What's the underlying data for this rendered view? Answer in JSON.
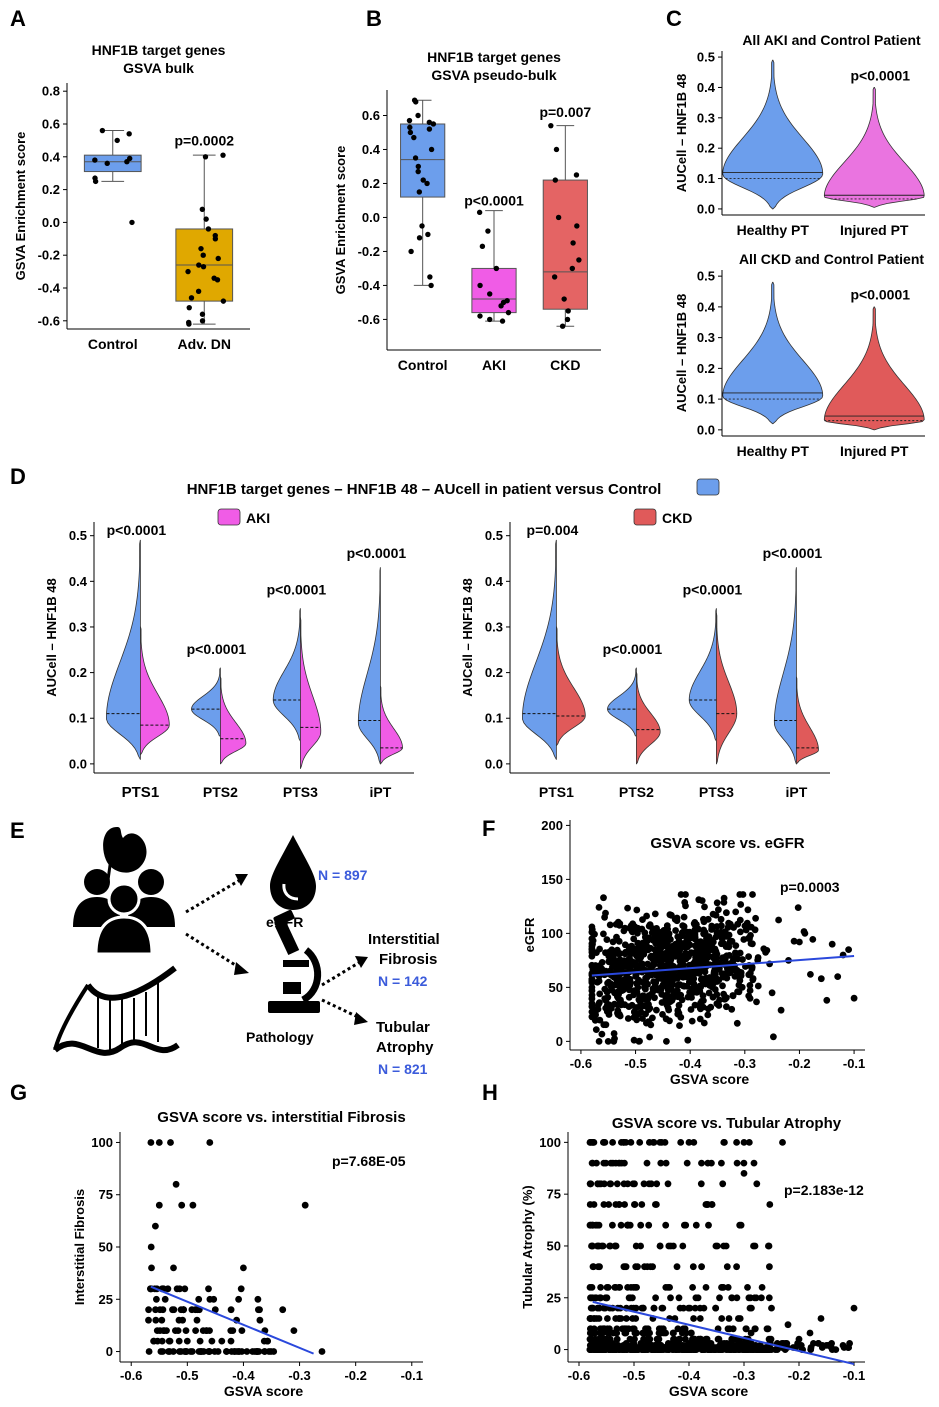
{
  "panel_labels": {
    "A": "A",
    "B": "B",
    "C": "C",
    "D": "D",
    "E": "E",
    "F": "F",
    "G": "G",
    "H": "H"
  },
  "colors": {
    "control": "#6c9eec",
    "adv_dn": "#e0a800",
    "aki": "#f05ce6",
    "ckd": "#e46464",
    "injured_aki": "#ea74e0",
    "injured_ckd": "#e05a5a",
    "fit_line": "#2a48dc",
    "n_text": "#3b5bdb"
  },
  "panel_E": {
    "egfr_label": "eGFR",
    "egfr_n": "N = 897",
    "pathology_label": "Pathology",
    "fibrosis_line1": "Interstitial",
    "fibrosis_line2": "Fibrosis",
    "fibrosis_n": "N = 142",
    "atrophy_line1": "Tubular",
    "atrophy_line2": "Atrophy",
    "atrophy_n": "N = 821",
    "icons": [
      "kidney-icon",
      "people-icon",
      "dna-icon",
      "blood-drop-icon",
      "microscope-icon",
      "arrow-icon"
    ]
  },
  "chart_data": [
    {
      "id": "A",
      "type": "box",
      "title_line1": "HNF1B target genes",
      "title_line2": "GSVA bulk",
      "ylabel": "GSVA Enrichment score",
      "ylim": [
        -0.65,
        0.85
      ],
      "yticks": [
        -0.6,
        -0.4,
        -0.2,
        0.0,
        0.2,
        0.4,
        0.6,
        0.8
      ],
      "ytick_labels": [
        "-0.6",
        "-0.4",
        "-0.2",
        "0.0",
        "0.2",
        "0.4",
        "0.6",
        "0.8"
      ],
      "categories": [
        "Control",
        "Adv. DN"
      ],
      "boxes": [
        {
          "q1": 0.31,
          "median": 0.37,
          "q3": 0.41,
          "whisker_low": 0.25,
          "whisker_high": 0.56,
          "color": "#6c9eec",
          "points": [
            0.56,
            0.54,
            0.5,
            0.39,
            0.38,
            0.37,
            0.36,
            0.27,
            0.25,
            0.0
          ]
        },
        {
          "q1": -0.48,
          "median": -0.26,
          "q3": -0.04,
          "whisker_low": -0.62,
          "whisker_high": 0.41,
          "color": "#e0a800",
          "points": [
            0.41,
            0.4,
            0.08,
            0.02,
            -0.04,
            -0.08,
            -0.1,
            -0.16,
            -0.2,
            -0.22,
            -0.26,
            -0.27,
            -0.3,
            -0.34,
            -0.35,
            -0.42,
            -0.46,
            -0.48,
            -0.52,
            -0.56,
            -0.6,
            -0.61,
            -0.62
          ]
        }
      ],
      "annotations": [
        {
          "text": "p=0.0002",
          "category": 1,
          "y": 0.5
        }
      ]
    },
    {
      "id": "B",
      "type": "box",
      "title_line1": "HNF1B target genes",
      "title_line2": "GSVA pseudo-bulk",
      "ylabel": "GSVA Enrichment score",
      "ylim": [
        -0.78,
        0.75
      ],
      "yticks": [
        -0.6,
        -0.4,
        -0.2,
        0.0,
        0.2,
        0.4,
        0.6
      ],
      "ytick_labels": [
        "-0.6",
        "-0.4",
        "-0.2",
        "0.0",
        "0.2",
        "0.4",
        "0.6"
      ],
      "categories": [
        "Control",
        "AKI",
        "CKD"
      ],
      "boxes": [
        {
          "q1": 0.12,
          "median": 0.34,
          "q3": 0.55,
          "whisker_low": -0.4,
          "whisker_high": 0.69,
          "color": "#6c9eec",
          "points": [
            0.69,
            0.68,
            0.6,
            0.57,
            0.56,
            0.55,
            0.53,
            0.52,
            0.5,
            0.47,
            0.4,
            0.35,
            0.3,
            0.27,
            0.22,
            0.2,
            0.15,
            -0.05,
            -0.1,
            -0.12,
            -0.2,
            -0.35,
            -0.4
          ]
        },
        {
          "q1": -0.56,
          "median": -0.48,
          "q3": -0.3,
          "whisker_low": -0.61,
          "whisker_high": 0.04,
          "color": "#f05ce6",
          "points": [
            0.03,
            -0.08,
            -0.17,
            -0.3,
            -0.4,
            -0.45,
            -0.49,
            -0.5,
            -0.52,
            -0.56,
            -0.58,
            -0.6,
            -0.61
          ]
        },
        {
          "q1": -0.54,
          "median": -0.32,
          "q3": 0.22,
          "whisker_low": -0.64,
          "whisker_high": 0.54,
          "color": "#e46464",
          "points": [
            0.54,
            0.4,
            0.25,
            0.22,
            0.0,
            -0.05,
            -0.15,
            -0.25,
            -0.3,
            -0.35,
            -0.48,
            -0.55,
            -0.6,
            -0.64
          ]
        }
      ],
      "annotations": [
        {
          "text": "p<0.0001",
          "category": 1,
          "y": 0.1
        },
        {
          "text": "p=0.007",
          "category": 2,
          "y": 0.62
        }
      ]
    },
    {
      "id": "C1",
      "type": "violin",
      "title": "All AKI and Control Patient",
      "ylabel": "AUCell – HNF1B 48",
      "ylim": [
        -0.02,
        0.52
      ],
      "yticks": [
        0.0,
        0.1,
        0.2,
        0.3,
        0.4,
        0.5
      ],
      "ytick_labels": [
        "0.0",
        "0.1",
        "0.2",
        "0.3",
        "0.4",
        "0.5"
      ],
      "categories": [
        "Healthy PT",
        "Injured PT"
      ],
      "violins": [
        {
          "min": 0.0,
          "max": 0.49,
          "median": 0.12,
          "q1": 0.1,
          "mode": 0.115,
          "color": "#6c9eec"
        },
        {
          "min": 0.005,
          "max": 0.4,
          "median": 0.045,
          "q1": 0.033,
          "mode": 0.04,
          "color": "#ea74e0"
        }
      ],
      "annotations": [
        {
          "text": "p<0.0001",
          "category": 1,
          "y": 0.44
        }
      ]
    },
    {
      "id": "C2",
      "type": "violin",
      "title": "All CKD and Control Patient",
      "ylabel": "AUCell – HNF1B 48",
      "ylim": [
        -0.02,
        0.52
      ],
      "yticks": [
        0.0,
        0.1,
        0.2,
        0.3,
        0.4,
        0.5
      ],
      "ytick_labels": [
        "0.0",
        "0.1",
        "0.2",
        "0.3",
        "0.4",
        "0.5"
      ],
      "categories": [
        "Healthy PT",
        "Injured PT"
      ],
      "violins": [
        {
          "min": 0.02,
          "max": 0.48,
          "median": 0.12,
          "q1": 0.1,
          "mode": 0.11,
          "color": "#6c9eec"
        },
        {
          "min": 0.0,
          "max": 0.4,
          "median": 0.045,
          "q1": 0.03,
          "mode": 0.03,
          "color": "#e05a5a"
        }
      ],
      "annotations": [
        {
          "text": "p<0.0001",
          "category": 1,
          "y": 0.44
        }
      ]
    },
    {
      "id": "D",
      "type": "split-violin",
      "title": "HNF1B target genes – HNF1B 48 – AUcell in patient versus Control",
      "legend_control": "",
      "groups": [
        {
          "legend": "AKI",
          "color": "#f05ce6",
          "ylabel": "AUCell – HNF1B 48",
          "ylim": [
            -0.02,
            0.53
          ],
          "yticks": [
            0.0,
            0.1,
            0.2,
            0.3,
            0.4,
            0.5
          ],
          "ytick_labels": [
            "0.0",
            "0.1",
            "0.2",
            "0.3",
            "0.4",
            "0.5"
          ],
          "categories": [
            "PTS1",
            "PTS2",
            "PTS3",
            "iPT"
          ],
          "pvalues": [
            "p<0.0001",
            "p<0.0001",
            "p<0.0001",
            "p<0.0001"
          ],
          "pvalue_y": [
            0.51,
            0.25,
            0.38,
            0.46
          ],
          "control": [
            {
              "min": 0.01,
              "max": 0.49,
              "median": 0.11,
              "mode": 0.1,
              "w": 1.0
            },
            {
              "min": 0.06,
              "max": 0.21,
              "median": 0.12,
              "mode": 0.12,
              "w": 0.85
            },
            {
              "min": 0.05,
              "max": 0.34,
              "median": 0.14,
              "mode": 0.14,
              "w": 0.8
            },
            {
              "min": 0.0,
              "max": 0.43,
              "median": 0.095,
              "mode": 0.09,
              "w": 0.65
            }
          ],
          "patient": [
            {
              "min": 0.02,
              "max": 0.3,
              "median": 0.085,
              "mode": 0.085,
              "w": 0.85
            },
            {
              "min": 0.0,
              "max": 0.19,
              "median": 0.055,
              "mode": 0.045,
              "w": 0.75
            },
            {
              "min": -0.01,
              "max": 0.32,
              "median": 0.08,
              "mode": 0.07,
              "w": 0.6
            },
            {
              "min": 0.0,
              "max": 0.17,
              "median": 0.035,
              "mode": 0.035,
              "w": 0.65
            }
          ]
        },
        {
          "legend": "CKD",
          "color": "#e05a5a",
          "ylabel": "AUCell – HNF1B 48",
          "ylim": [
            -0.02,
            0.53
          ],
          "yticks": [
            0.0,
            0.1,
            0.2,
            0.3,
            0.4,
            0.5
          ],
          "ytick_labels": [
            "0.0",
            "0.1",
            "0.2",
            "0.3",
            "0.4",
            "0.5"
          ],
          "categories": [
            "PTS1",
            "PTS2",
            "PTS3",
            "iPT"
          ],
          "pvalues": [
            "p=0.004",
            "p<0.0001",
            "p<0.0001",
            "p<0.0001"
          ],
          "pvalue_y": [
            0.51,
            0.25,
            0.38,
            0.46
          ],
          "control": [
            {
              "min": 0.01,
              "max": 0.49,
              "median": 0.11,
              "mode": 0.1,
              "w": 1.0
            },
            {
              "min": 0.06,
              "max": 0.21,
              "median": 0.12,
              "mode": 0.12,
              "w": 0.85
            },
            {
              "min": 0.05,
              "max": 0.34,
              "median": 0.14,
              "mode": 0.14,
              "w": 0.8
            },
            {
              "min": 0.0,
              "max": 0.43,
              "median": 0.095,
              "mode": 0.09,
              "w": 0.65
            }
          ],
          "patient": [
            {
              "min": 0.04,
              "max": 0.3,
              "median": 0.105,
              "mode": 0.105,
              "w": 0.85
            },
            {
              "min": 0.0,
              "max": 0.2,
              "median": 0.075,
              "mode": 0.07,
              "w": 0.7
            },
            {
              "min": 0.0,
              "max": 0.33,
              "median": 0.11,
              "mode": 0.11,
              "w": 0.6
            },
            {
              "min": 0.0,
              "max": 0.19,
              "median": 0.035,
              "mode": 0.03,
              "w": 0.65
            }
          ]
        }
      ]
    },
    {
      "id": "F",
      "type": "scatter",
      "title": "GSVA score vs. eGFR",
      "xlabel": "GSVA score",
      "ylabel": "eGFR",
      "xlim": [
        -0.62,
        -0.08
      ],
      "ylim": [
        -8,
        205
      ],
      "xticks": [
        -0.6,
        -0.5,
        -0.4,
        -0.3,
        -0.2,
        -0.1
      ],
      "xtick_labels": [
        "-0.6",
        "-0.5",
        "-0.4",
        "-0.3",
        "-0.2",
        "-0.1"
      ],
      "yticks": [
        0,
        50,
        100,
        150,
        200
      ],
      "ytick_labels": [
        "0",
        "50",
        "100",
        "150",
        "200"
      ],
      "fit": {
        "x": [
          -0.58,
          -0.1
        ],
        "y": [
          61,
          79
        ]
      },
      "pvalue": "p=0.0003",
      "n_points": 897,
      "cloud": {
        "x_mean": -0.44,
        "x_sd": 0.08,
        "y_mean": 70,
        "y_sd": 25,
        "x_min": -0.58,
        "x_max": -0.1,
        "y_min": 0,
        "y_max": 136,
        "extra_points": [
          {
            "x": -0.12,
            "y": 80
          },
          {
            "x": -0.11,
            "y": 85
          },
          {
            "x": -0.1,
            "y": 40
          },
          {
            "x": -0.13,
            "y": 60
          },
          {
            "x": -0.15,
            "y": 38
          },
          {
            "x": -0.2,
            "y": 92
          },
          {
            "x": -0.22,
            "y": 75
          },
          {
            "x": -0.25,
            "y": 45
          },
          {
            "x": -0.18,
            "y": 62
          },
          {
            "x": -0.16,
            "y": 58
          },
          {
            "x": -0.14,
            "y": 90
          },
          {
            "x": -0.19,
            "y": 100
          }
        ]
      }
    },
    {
      "id": "G",
      "type": "scatter",
      "title": "GSVA score vs. interstitial Fibrosis",
      "xlabel": "GSVA score",
      "ylabel": "Interstitial Fibrosis",
      "xlim": [
        -0.62,
        -0.08
      ],
      "ylim": [
        -5,
        105
      ],
      "xticks": [
        -0.6,
        -0.5,
        -0.4,
        -0.3,
        -0.2,
        -0.1
      ],
      "xtick_labels": [
        "-0.6",
        "-0.5",
        "-0.4",
        "-0.3",
        "-0.2",
        "-0.1"
      ],
      "yticks": [
        0,
        25,
        50,
        75,
        100
      ],
      "ytick_labels": [
        "0",
        "25",
        "50",
        "75",
        "100"
      ],
      "fit": {
        "x": [
          -0.565,
          -0.275
        ],
        "y": [
          31,
          -1
        ]
      },
      "pvalue": "p=7.68E-05",
      "n_points": 142,
      "levels": [
        0,
        5,
        10,
        15,
        20,
        25,
        30,
        40,
        50,
        60,
        70,
        80,
        100
      ],
      "x_min": -0.57,
      "x_max": -0.26,
      "extra_points": [
        {
          "x": -0.565,
          "y": 100
        },
        {
          "x": -0.55,
          "y": 100
        },
        {
          "x": -0.53,
          "y": 100
        },
        {
          "x": -0.46,
          "y": 100
        },
        {
          "x": -0.52,
          "y": 80
        },
        {
          "x": -0.55,
          "y": 70
        },
        {
          "x": -0.51,
          "y": 70
        },
        {
          "x": -0.49,
          "y": 70
        },
        {
          "x": -0.29,
          "y": 70
        },
        {
          "x": -0.4,
          "y": 40
        },
        {
          "x": -0.33,
          "y": 20
        },
        {
          "x": -0.31,
          "y": 10
        },
        {
          "x": -0.26,
          "y": 0
        }
      ]
    },
    {
      "id": "H",
      "type": "scatter",
      "title": "GSVA score vs. Tubular Atrophy",
      "xlabel": "GSVA score",
      "ylabel": "Tubular Atrophy (%)",
      "xlim": [
        -0.62,
        -0.08
      ],
      "ylim": [
        -6,
        105
      ],
      "xticks": [
        -0.6,
        -0.5,
        -0.4,
        -0.3,
        -0.2,
        -0.1
      ],
      "xtick_labels": [
        "-0.6",
        "-0.5",
        "-0.4",
        "-0.3",
        "-0.2",
        "-0.1"
      ],
      "yticks": [
        0,
        25,
        50,
        75,
        100
      ],
      "ytick_labels": [
        "0",
        "25",
        "50",
        "75",
        "100"
      ],
      "fit": {
        "x": [
          -0.575,
          -0.1
        ],
        "y": [
          23,
          -7
        ]
      },
      "pvalue": "p=2.183e-12",
      "n_points": 821,
      "levels": [
        0,
        1,
        2,
        3,
        5,
        8,
        10,
        15,
        20,
        25,
        30,
        40,
        50,
        60,
        70,
        80,
        90,
        100
      ],
      "x_min": -0.58,
      "x_max": -0.1,
      "extra_points": [
        {
          "x": -0.23,
          "y": 100
        },
        {
          "x": -0.3,
          "y": 85
        },
        {
          "x": -0.28,
          "y": 50
        },
        {
          "x": -0.25,
          "y": 20
        },
        {
          "x": -0.2,
          "y": 5
        },
        {
          "x": -0.15,
          "y": 2
        },
        {
          "x": -0.1,
          "y": 20
        },
        {
          "x": -0.12,
          "y": 2
        },
        {
          "x": -0.11,
          "y": 1
        },
        {
          "x": -0.18,
          "y": 8
        },
        {
          "x": -0.16,
          "y": 15
        },
        {
          "x": -0.22,
          "y": 12
        }
      ]
    }
  ]
}
